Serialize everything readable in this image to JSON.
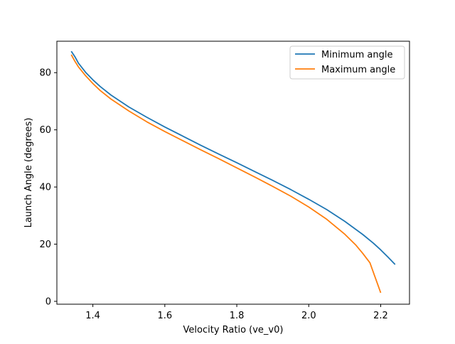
{
  "chart_data": {
    "type": "line",
    "title": "",
    "xlabel": "Velocity Ratio (ve_v0)",
    "ylabel": "Launch Angle (degrees)",
    "xlim": [
      1.3,
      2.28
    ],
    "ylim": [
      -1,
      91
    ],
    "xticks": [
      1.4,
      1.6,
      1.8,
      2.0,
      2.2
    ],
    "xtick_labels": [
      "1.4",
      "1.6",
      "1.8",
      "2.0",
      "2.2"
    ],
    "yticks": [
      0,
      20,
      40,
      60,
      80
    ],
    "ytick_labels": [
      "0",
      "20",
      "40",
      "60",
      "80"
    ],
    "grid": false,
    "legend_position": "top-right",
    "series": [
      {
        "name": "Minimum angle",
        "color": "#1f77b4",
        "x": [
          1.34,
          1.35,
          1.36,
          1.38,
          1.4,
          1.42,
          1.45,
          1.5,
          1.55,
          1.6,
          1.65,
          1.7,
          1.75,
          1.8,
          1.85,
          1.9,
          1.95,
          2.0,
          2.05,
          2.1,
          2.15,
          2.18,
          2.2,
          2.22,
          2.24
        ],
        "y": [
          87.5,
          85.6,
          83.3,
          80.1,
          77.5,
          75.2,
          72.2,
          68.0,
          64.4,
          61.0,
          57.8,
          54.6,
          51.5,
          48.5,
          45.4,
          42.3,
          39.1,
          35.7,
          32.1,
          28.0,
          23.4,
          20.3,
          18.0,
          15.5,
          12.9
        ]
      },
      {
        "name": "Maximum angle",
        "color": "#ff7f0e",
        "x": [
          1.34,
          1.35,
          1.36,
          1.38,
          1.4,
          1.42,
          1.45,
          1.5,
          1.55,
          1.6,
          1.65,
          1.7,
          1.75,
          1.8,
          1.85,
          1.9,
          1.95,
          2.0,
          2.05,
          2.1,
          2.13,
          2.15,
          2.17,
          2.18,
          2.19,
          2.2
        ],
        "y": [
          86.3,
          84.0,
          82.0,
          78.9,
          76.2,
          73.8,
          70.8,
          66.6,
          62.8,
          59.4,
          56.2,
          53.0,
          49.9,
          46.7,
          43.5,
          40.2,
          36.8,
          33.0,
          28.7,
          23.5,
          19.8,
          16.8,
          13.5,
          10.0,
          6.5,
          3.0
        ]
      }
    ]
  }
}
